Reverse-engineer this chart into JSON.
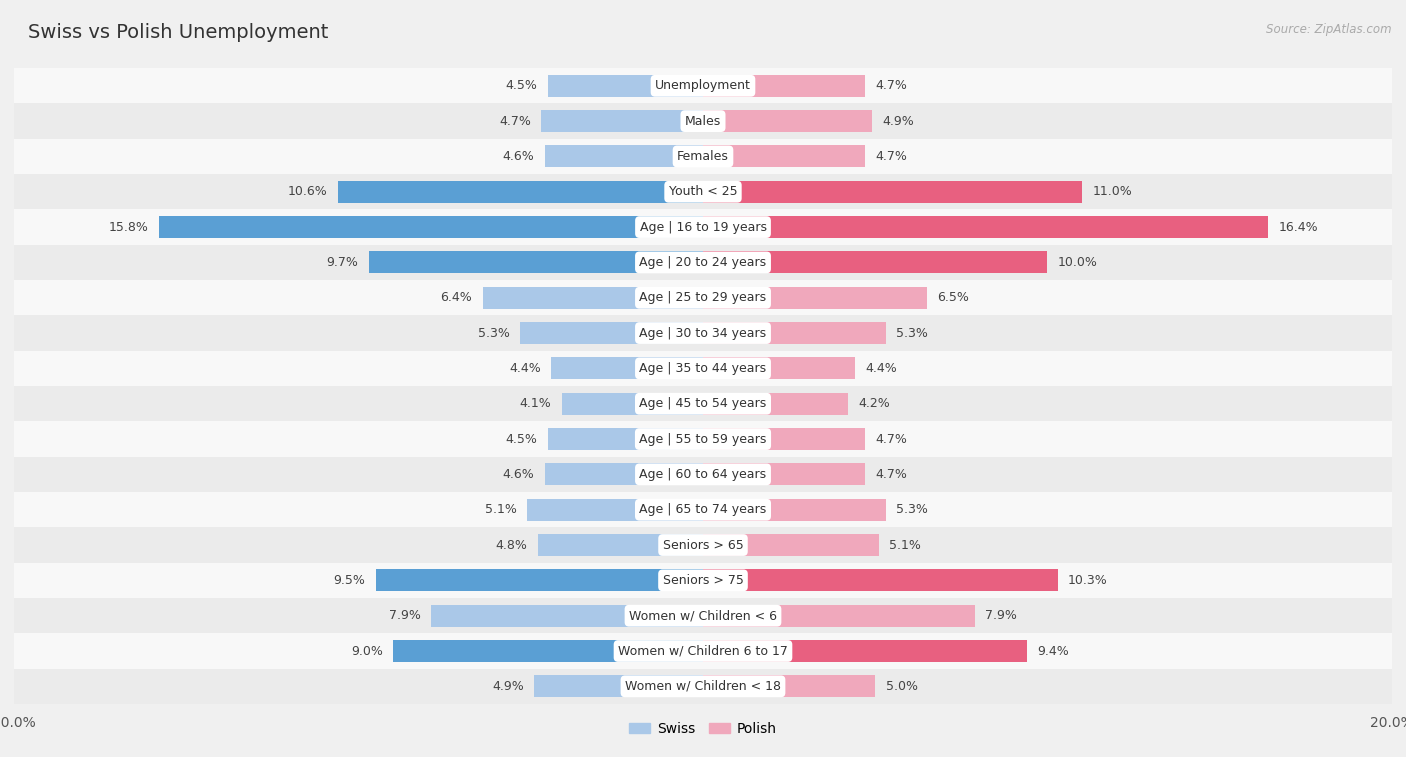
{
  "title": "Swiss vs Polish Unemployment",
  "source": "Source: ZipAtlas.com",
  "categories": [
    "Unemployment",
    "Males",
    "Females",
    "Youth < 25",
    "Age | 16 to 19 years",
    "Age | 20 to 24 years",
    "Age | 25 to 29 years",
    "Age | 30 to 34 years",
    "Age | 35 to 44 years",
    "Age | 45 to 54 years",
    "Age | 55 to 59 years",
    "Age | 60 to 64 years",
    "Age | 65 to 74 years",
    "Seniors > 65",
    "Seniors > 75",
    "Women w/ Children < 6",
    "Women w/ Children 6 to 17",
    "Women w/ Children < 18"
  ],
  "swiss_values": [
    4.5,
    4.7,
    4.6,
    10.6,
    15.8,
    9.7,
    6.4,
    5.3,
    4.4,
    4.1,
    4.5,
    4.6,
    5.1,
    4.8,
    9.5,
    7.9,
    9.0,
    4.9
  ],
  "polish_values": [
    4.7,
    4.9,
    4.7,
    11.0,
    16.4,
    10.0,
    6.5,
    5.3,
    4.4,
    4.2,
    4.7,
    4.7,
    5.3,
    5.1,
    10.3,
    7.9,
    9.4,
    5.0
  ],
  "swiss_color": "#aac8e8",
  "polish_color": "#f0a8bc",
  "swiss_highlight_color": "#5a9fd4",
  "polish_highlight_color": "#e86080",
  "axis_max": 20.0,
  "bar_height": 0.62,
  "bg_color": "#f0f0f0",
  "row_bg_even": "#ebebeb",
  "row_bg_odd": "#f8f8f8",
  "legend_swiss": "Swiss",
  "legend_polish": "Polish",
  "title_fontsize": 14,
  "label_fontsize": 9,
  "value_fontsize": 9
}
